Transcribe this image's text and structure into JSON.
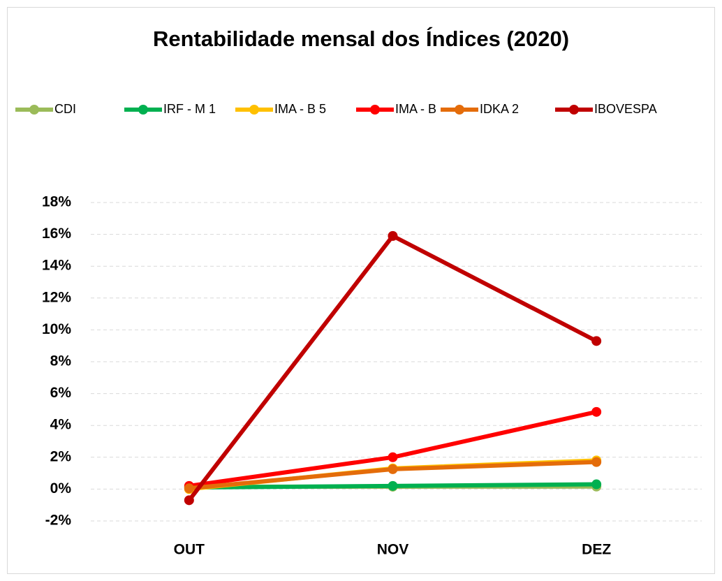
{
  "chart_data": {
    "type": "line",
    "title": "Rentabilidade mensal dos Índices (2020)",
    "categories": [
      "OUT",
      "NOV",
      "DEZ"
    ],
    "series": [
      {
        "name": "CDI",
        "color": "#9bbb59",
        "values": [
          0.16,
          0.15,
          0.16
        ]
      },
      {
        "name": "IRF - M 1",
        "color": "#00b050",
        "values": [
          0.1,
          0.2,
          0.3
        ]
      },
      {
        "name": "IMA - B 5",
        "color": "#ffc000",
        "values": [
          0.0,
          1.3,
          1.8
        ]
      },
      {
        "name": "IMA - B",
        "color": "#ff0000",
        "values": [
          0.2,
          2.0,
          4.85
        ]
      },
      {
        "name": "IDKA 2",
        "color": "#e46c0a",
        "values": [
          0.05,
          1.25,
          1.7
        ]
      },
      {
        "name": "IBOVESPA",
        "color": "#c00000",
        "values": [
          -0.7,
          15.9,
          9.3
        ]
      }
    ],
    "ylim": [
      -2,
      18
    ],
    "yticks": [
      {
        "value": -2,
        "label": "-2%"
      },
      {
        "value": 0,
        "label": "0%"
      },
      {
        "value": 2,
        "label": "2%"
      },
      {
        "value": 4,
        "label": "4%"
      },
      {
        "value": 6,
        "label": "6%"
      },
      {
        "value": 8,
        "label": "8%"
      },
      {
        "value": 10,
        "label": "10%"
      },
      {
        "value": 12,
        "label": "12%"
      },
      {
        "value": 14,
        "label": "14%"
      },
      {
        "value": 16,
        "label": "16%"
      },
      {
        "value": 18,
        "label": "18%"
      }
    ],
    "grid": true,
    "legend": "top"
  }
}
